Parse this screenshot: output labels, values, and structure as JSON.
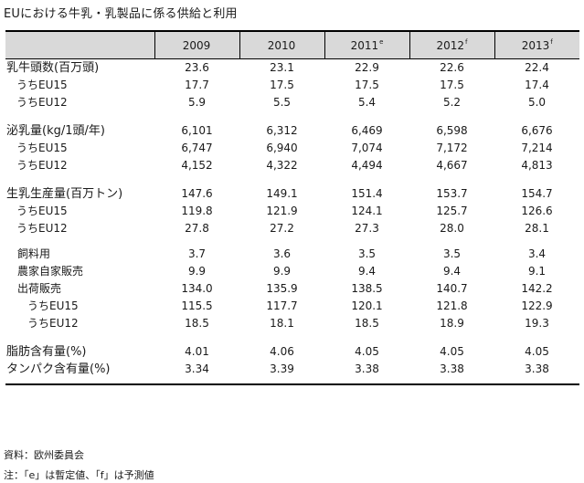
{
  "title": "EUにおける牛乳・乳製品に係る供給と利用",
  "header": {
    "years": [
      {
        "year": "2009",
        "mark": ""
      },
      {
        "year": "2010",
        "mark": ""
      },
      {
        "year": "2011",
        "mark": "e"
      },
      {
        "year": "2012",
        "mark": "f"
      },
      {
        "year": "2013",
        "mark": "f"
      }
    ]
  },
  "rows": [
    {
      "label": "乳牛頭数(百万頭)",
      "indent": 0,
      "values": [
        "23.6",
        "23.1",
        "22.9",
        "22.6",
        "22.4"
      ]
    },
    {
      "label": "うちEU15",
      "indent": 1,
      "values": [
        "17.7",
        "17.5",
        "17.5",
        "17.5",
        "17.4"
      ]
    },
    {
      "label": "うちEU12",
      "indent": 1,
      "values": [
        "5.9",
        "5.5",
        "5.4",
        "5.2",
        "5.0"
      ]
    },
    {
      "gap": true
    },
    {
      "label": "泌乳量(kg/1頭/年)",
      "indent": 0,
      "values": [
        "6,101",
        "6,312",
        "6,469",
        "6,598",
        "6,676"
      ]
    },
    {
      "label": "うちEU15",
      "indent": 1,
      "values": [
        "6,747",
        "6,940",
        "7,074",
        "7,172",
        "7,214"
      ]
    },
    {
      "label": "うちEU12",
      "indent": 1,
      "values": [
        "4,152",
        "4,322",
        "4,494",
        "4,667",
        "4,813"
      ]
    },
    {
      "gap": true
    },
    {
      "label": "生乳生産量(百万トン)",
      "indent": 0,
      "values": [
        "147.6",
        "149.1",
        "151.4",
        "153.7",
        "154.7"
      ]
    },
    {
      "label": "うちEU15",
      "indent": 1,
      "values": [
        "119.8",
        "121.9",
        "124.1",
        "125.7",
        "126.6"
      ]
    },
    {
      "label": "うちEU12",
      "indent": 1,
      "values": [
        "27.8",
        "27.2",
        "27.3",
        "28.0",
        "28.1"
      ]
    },
    {
      "gap": true,
      "small": true
    },
    {
      "label": "飼料用",
      "indent": 2,
      "values": [
        "3.7",
        "3.6",
        "3.5",
        "3.5",
        "3.4"
      ]
    },
    {
      "label": "農家自家販売",
      "indent": 2,
      "values": [
        "9.9",
        "9.9",
        "9.4",
        "9.4",
        "9.1"
      ]
    },
    {
      "label": "出荷販売",
      "indent": 2,
      "values": [
        "134.0",
        "135.9",
        "138.5",
        "140.7",
        "142.2"
      ]
    },
    {
      "label": "うちEU15",
      "indent": 3,
      "values": [
        "115.5",
        "117.7",
        "120.1",
        "121.8",
        "122.9"
      ]
    },
    {
      "label": "うちEU12",
      "indent": 3,
      "values": [
        "18.5",
        "18.1",
        "18.5",
        "18.9",
        "19.3"
      ]
    },
    {
      "gap": true
    },
    {
      "label": "脂肪含有量(%)",
      "indent": 0,
      "values": [
        "4.01",
        "4.06",
        "4.05",
        "4.05",
        "4.05"
      ]
    },
    {
      "label": "タンパク含有量(%)",
      "indent": 0,
      "values": [
        "3.34",
        "3.39",
        "3.38",
        "3.38",
        "3.38"
      ],
      "last": true
    }
  ],
  "notes": {
    "source": "資料：欧州委員会",
    "legend": "注：「e」は暫定値、「f」は予測値"
  }
}
